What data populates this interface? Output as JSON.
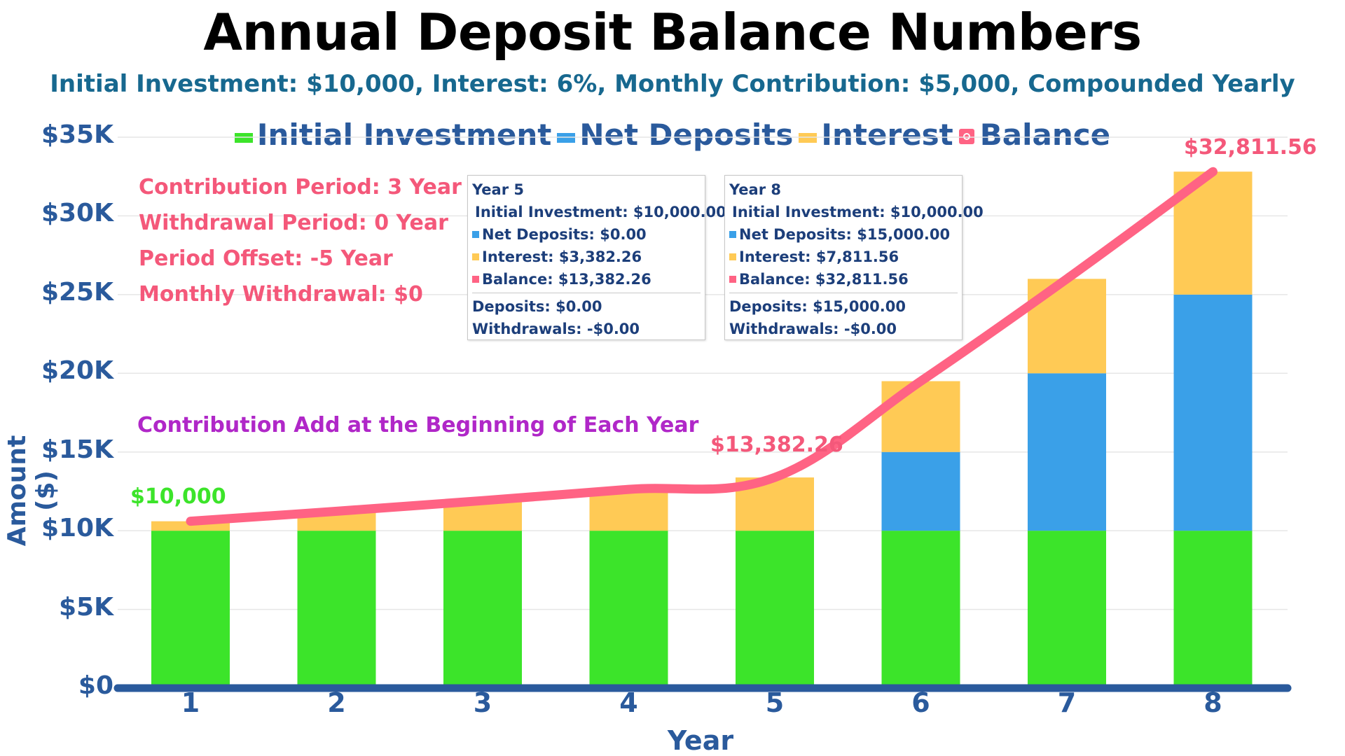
{
  "title": "Annual Deposit Balance Numbers",
  "subtitle": "Initial Investment: $10,000, Interest: 6%, Monthly Contribution: $5,000, Compounded Yearly",
  "legend": [
    {
      "name": "Initial Investment",
      "color": "#3ce42a"
    },
    {
      "name": "Net Deposits",
      "color": "#3aa0e8"
    },
    {
      "name": "Interest",
      "color": "#ffca55"
    },
    {
      "name": "Balance",
      "color": "#ff6384"
    }
  ],
  "notes": [
    "Contribution Period: 3 Year",
    "Withdrawal Period: 0 Year",
    "Period Offset: -5 Year",
    "Monthly Withdrawal: $0"
  ],
  "contribution_note": "Contribution Add at the Beginning of Each Year",
  "annotations": {
    "start": "$10,000",
    "mid": "$13,382.26",
    "end": "$32,811.56"
  },
  "tooltips": [
    {
      "title": "Year 5",
      "lines": [
        {
          "text": "Initial Investment: $10,000.00",
          "color": "#3ce42a"
        },
        {
          "text": "Net Deposits: $0.00",
          "color": "#3aa0e8"
        },
        {
          "text": "Interest: $3,382.26",
          "color": "#ffca55"
        },
        {
          "text": "Balance: $13,382.26",
          "color": "#ff6384"
        }
      ],
      "deposits": "Deposits: $0.00",
      "withdrawals": "Withdrawals: -$0.00"
    },
    {
      "title": "Year 8",
      "lines": [
        {
          "text": "Initial Investment: $10,000.00",
          "color": "#3ce42a"
        },
        {
          "text": "Net Deposits: $15,000.00",
          "color": "#3aa0e8"
        },
        {
          "text": "Interest: $7,811.56",
          "color": "#ffca55"
        },
        {
          "text": "Balance: $32,811.56",
          "color": "#ff6384"
        }
      ],
      "deposits": "Deposits: $15,000.00",
      "withdrawals": "Withdrawals: -$0.00"
    }
  ],
  "chart_data": {
    "type": "bar",
    "stacked": true,
    "categories": [
      "1",
      "2",
      "3",
      "4",
      "5",
      "6",
      "7",
      "8"
    ],
    "series": [
      {
        "name": "Initial Investment",
        "values": [
          10000,
          10000,
          10000,
          10000,
          10000,
          10000,
          10000,
          10000
        ]
      },
      {
        "name": "Net Deposits",
        "values": [
          0,
          0,
          0,
          0,
          0,
          5000,
          10000,
          15000
        ]
      },
      {
        "name": "Interest",
        "values": [
          600,
          1236,
          1910,
          2625,
          3382.26,
          4500,
          6000,
          7811.56
        ]
      }
    ],
    "line_series": {
      "name": "Balance",
      "values": [
        10600,
        11236,
        11910,
        12625,
        13382.26,
        19500,
        26000,
        32811.56
      ]
    },
    "xlabel": "Year",
    "ylabel": "Amount ($)",
    "yticks": [
      "$0",
      "$5K",
      "$10K",
      "$15K",
      "$20K",
      "$25K",
      "$30K",
      "$35K"
    ],
    "ylim": [
      0,
      35000
    ],
    "grid": true,
    "legend_position": "top"
  }
}
